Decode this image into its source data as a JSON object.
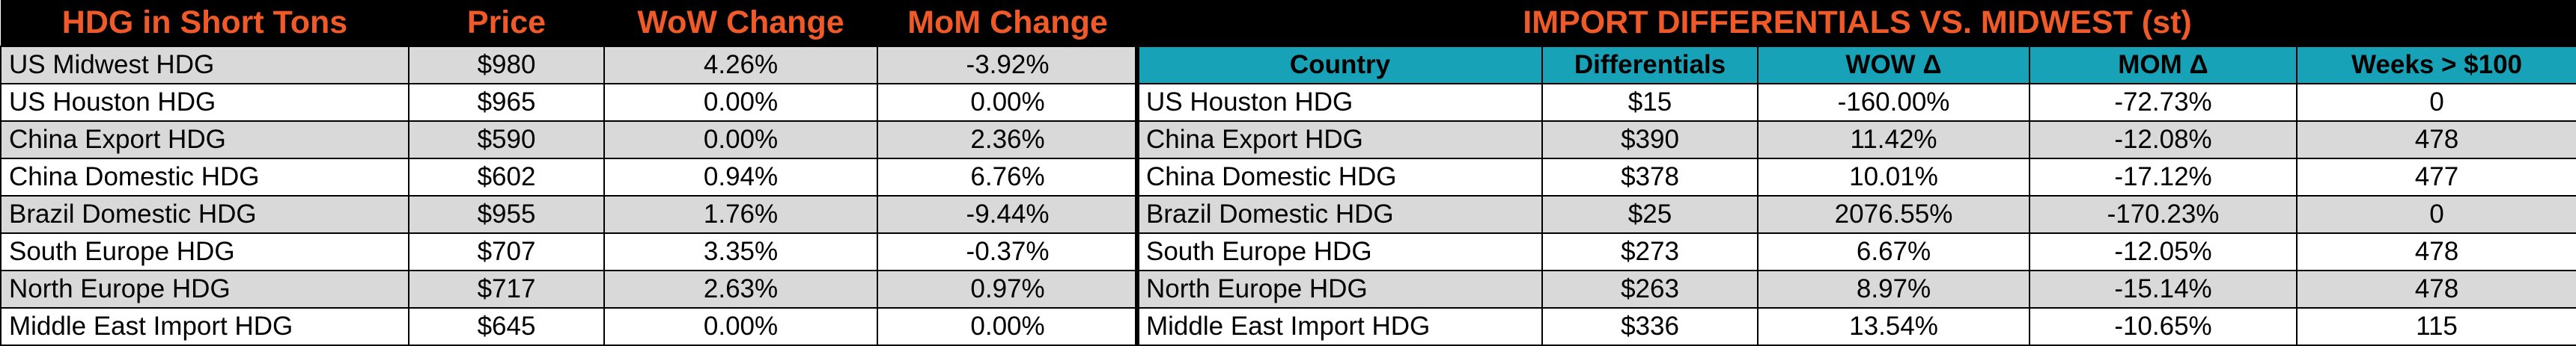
{
  "left_table": {
    "headers": [
      "HDG in Short Tons",
      "Price",
      "WoW Change",
      "MoM Change"
    ],
    "rows": [
      [
        "US Midwest HDG",
        "$980",
        "4.26%",
        "-3.92%"
      ],
      [
        "US Houston HDG",
        "$965",
        "0.00%",
        "0.00%"
      ],
      [
        "China Export HDG",
        "$590",
        "0.00%",
        "2.36%"
      ],
      [
        "China Domestic HDG",
        "$602",
        "0.94%",
        "6.76%"
      ],
      [
        "Brazil Domestic HDG",
        "$955",
        "1.76%",
        "-9.44%"
      ],
      [
        "South Europe HDG",
        "$707",
        "3.35%",
        "-0.37%"
      ],
      [
        "North Europe HDG",
        "$717",
        "2.63%",
        "0.97%"
      ],
      [
        "Middle East Import HDG",
        "$645",
        "0.00%",
        "0.00%"
      ]
    ]
  },
  "right_table": {
    "title": "IMPORT DIFFERENTIALS VS. MIDWEST (st)",
    "columns": [
      "Country",
      "Differentials",
      "WOW Δ",
      "MOM Δ",
      "Weeks > $100"
    ],
    "rows": [
      [
        "US Houston HDG",
        "$15",
        "-160.00%",
        "-72.73%",
        "0"
      ],
      [
        "China Export HDG",
        "$390",
        "11.42%",
        "-12.08%",
        "478"
      ],
      [
        "China Domestic HDG",
        "$378",
        "10.01%",
        "-17.12%",
        "477"
      ],
      [
        "Brazil Domestic HDG",
        "$25",
        "2076.55%",
        "-170.23%",
        "0"
      ],
      [
        "South Europe HDG",
        "$273",
        "6.67%",
        "-12.05%",
        "478"
      ],
      [
        "North Europe HDG",
        "$263",
        "8.97%",
        "-15.14%",
        "478"
      ],
      [
        "Middle East Import HDG",
        "$336",
        "13.54%",
        "-10.65%",
        "115"
      ]
    ]
  },
  "colors": {
    "header_bg": "#000000",
    "header_text": "#f05a28",
    "column_header_bg": "#17a2b8",
    "row_alt_bg": "#d9d9d9",
    "row_bg": "#ffffff"
  }
}
